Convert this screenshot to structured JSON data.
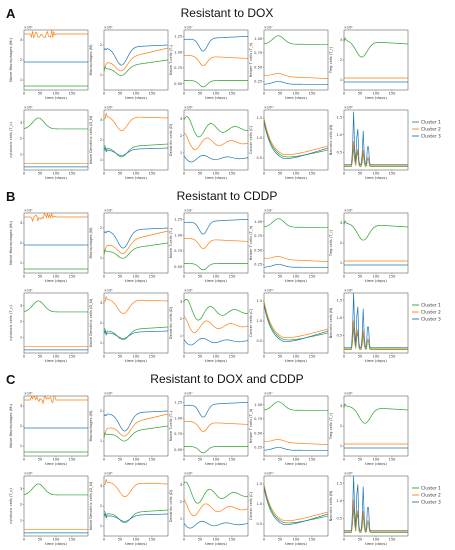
{
  "sections": [
    {
      "letter": "A",
      "title": "Resistant to DOX",
      "variant": 0
    },
    {
      "letter": "B",
      "title": "Resistant to CDDP",
      "variant": 1
    },
    {
      "letter": "C",
      "title": "Resistant to DOX and CDDP",
      "variant": 2
    }
  ],
  "xlabel": "time (days)",
  "legend": [
    "Cluster 1",
    "Cluster 2",
    "Cluster 3"
  ],
  "colors": {
    "c1": "#2ca02c",
    "c2": "#ff7f0e",
    "c3": "#1f77b4"
  },
  "chart_data": {
    "type": "line",
    "x_range": [
      0,
      200
    ],
    "x_ticks": [
      0,
      50,
      100,
      150
    ],
    "panels": [
      {
        "ylabel": "Naive Macrophages (M₀)",
        "multiplier": "×10⁵",
        "yticks": [
          "1",
          "2",
          "3"
        ],
        "ylim": [
          0.5,
          3.5
        ],
        "series": [
          {
            "name": "Cluster 1",
            "shape": "flat",
            "level": 0.7
          },
          {
            "name": "Cluster 2",
            "shape": "flat_wiggle",
            "level": 3.3
          },
          {
            "name": "Cluster 3",
            "shape": "flat",
            "level": 1.9
          }
        ]
      },
      {
        "ylabel": "Macrophages (M)",
        "multiplier": "×10⁵",
        "yticks": [
          "1",
          "2"
        ],
        "ylim": [
          0.5,
          2.5
        ],
        "series": [
          {
            "name": "Cluster 1",
            "shape": "dip_recover",
            "start": 1.2,
            "min": 0.9,
            "end": 1.5
          },
          {
            "name": "Cluster 2",
            "shape": "dip_recover",
            "start": 1.4,
            "min": 1.0,
            "end": 1.9
          },
          {
            "name": "Cluster 3",
            "shape": "dip_recover",
            "start": 1.9,
            "min": 1.3,
            "end": 2.0
          }
        ]
      },
      {
        "ylabel": "Naive T-cells (Tₙ)",
        "multiplier": "×10⁷",
        "yticks": [
          "0.50",
          "0.75",
          "1.00",
          "1.25"
        ],
        "ylim": [
          0.4,
          1.35
        ],
        "series": [
          {
            "name": "Cluster 1",
            "shape": "dip_mid",
            "start": 0.55,
            "min": 0.45,
            "end": 0.55
          },
          {
            "name": "Cluster 2",
            "shape": "dip_mid",
            "start": 0.95,
            "min": 0.8,
            "end": 0.9
          },
          {
            "name": "Cluster 3",
            "shape": "dip_mid",
            "start": 1.2,
            "min": 1.0,
            "end": 1.25
          }
        ]
      },
      {
        "ylabel": "Helper T cells (T_h)",
        "multiplier": "×10⁷",
        "yticks": [
          "0.25",
          "0.50",
          "0.75",
          "1.00"
        ],
        "ylim": [
          0.1,
          1.15
        ],
        "series": [
          {
            "name": "Cluster 1",
            "shape": "rise_fall",
            "start": 0.9,
            "peak": 1.05,
            "end": 0.9
          },
          {
            "name": "Cluster 2",
            "shape": "rise_fall",
            "start": 0.35,
            "peak": 0.4,
            "end": 0.3
          },
          {
            "name": "Cluster 3",
            "shape": "rise_fall",
            "start": 0.2,
            "peak": 0.25,
            "end": 0.2
          }
        ]
      },
      {
        "ylabel": "Treg cells (T_r)",
        "multiplier": "×10⁶",
        "yticks": [
          "1",
          "2",
          "3"
        ],
        "ylim": [
          0.5,
          3.5
        ],
        "series": [
          {
            "name": "Cluster 1",
            "shape": "dip_recover",
            "start": 3.0,
            "min": 2.2,
            "end": 2.8
          },
          {
            "name": "Cluster 2",
            "shape": "flat",
            "level": 1.1
          },
          {
            "name": "Cluster 3",
            "shape": "flat",
            "level": 0.9
          }
        ]
      },
      {
        "ylabel": "cytotoxic cells (T_c)",
        "multiplier": "×10⁵",
        "yticks": [
          "1",
          "2",
          "3"
        ],
        "ylim": [
          0,
          3.8
        ],
        "series": [
          {
            "name": "Cluster 1",
            "shape": "rise_fall",
            "start": 2.6,
            "peak": 3.3,
            "end": 2.6
          },
          {
            "name": "Cluster 2",
            "shape": "flat",
            "level": 0.4
          },
          {
            "name": "Cluster 3",
            "shape": "flat",
            "level": 0.2
          }
        ]
      },
      {
        "ylabel": "Naive Dendritic cells (D_N)",
        "multiplier": "×10⁶",
        "yticks": [
          "1",
          "2",
          "3"
        ],
        "ylim": [
          0.5,
          3.5
        ],
        "series": [
          {
            "name": "Cluster 1",
            "shape": "dip_recover",
            "start": 1.6,
            "min": 1.1,
            "end": 1.8
          },
          {
            "name": "Cluster 2",
            "shape": "dip_recover",
            "start": 3.2,
            "min": 2.5,
            "end": 3.1
          },
          {
            "name": "Cluster 3",
            "shape": "dip_recover",
            "start": 1.5,
            "min": 1.2,
            "end": 1.6
          }
        ]
      },
      {
        "ylabel": "Dendritic cells (D)",
        "multiplier": "×10⁶",
        "yticks": [
          "1",
          "2",
          "3"
        ],
        "ylim": [
          0,
          3.5
        ],
        "series": [
          {
            "name": "Cluster 1",
            "shape": "oscillate",
            "level": 2.4,
            "amp": 0.8
          },
          {
            "name": "Cluster 2",
            "shape": "oscillate",
            "level": 1.6,
            "amp": 0.6
          },
          {
            "name": "Cluster 3",
            "shape": "oscillate",
            "level": 0.7,
            "amp": 0.3
          }
        ]
      },
      {
        "ylabel": "Cancer cells (C)",
        "multiplier": "×10¹⁰",
        "yticks": [
          "0.5",
          "1.0",
          "1.5"
        ],
        "ylim": [
          0.2,
          1.7
        ],
        "series": [
          {
            "name": "Cluster 1",
            "shape": "decay_rise",
            "start": 1.45,
            "min": 0.45,
            "end": 0.7
          },
          {
            "name": "Cluster 2",
            "shape": "decay_rise",
            "start": 1.5,
            "min": 0.5,
            "end": 0.8
          },
          {
            "name": "Cluster 3",
            "shape": "decay_rise",
            "start": 1.4,
            "min": 0.4,
            "end": 0.75
          }
        ]
      },
      {
        "ylabel": "Necrotic cells (N)",
        "multiplier": "×10⁸",
        "yticks": [
          "0.5",
          "1.0",
          "1.5"
        ],
        "ylim": [
          0,
          1.7
        ],
        "series": [
          {
            "name": "Cluster 1",
            "shape": "spikes",
            "level": 0.1,
            "amp": 0.6
          },
          {
            "name": "Cluster 2",
            "shape": "spikes",
            "level": 0.12,
            "amp": 0.7
          },
          {
            "name": "Cluster 3",
            "shape": "spikes",
            "level": 0.15,
            "amp": 1.5
          }
        ]
      }
    ]
  }
}
